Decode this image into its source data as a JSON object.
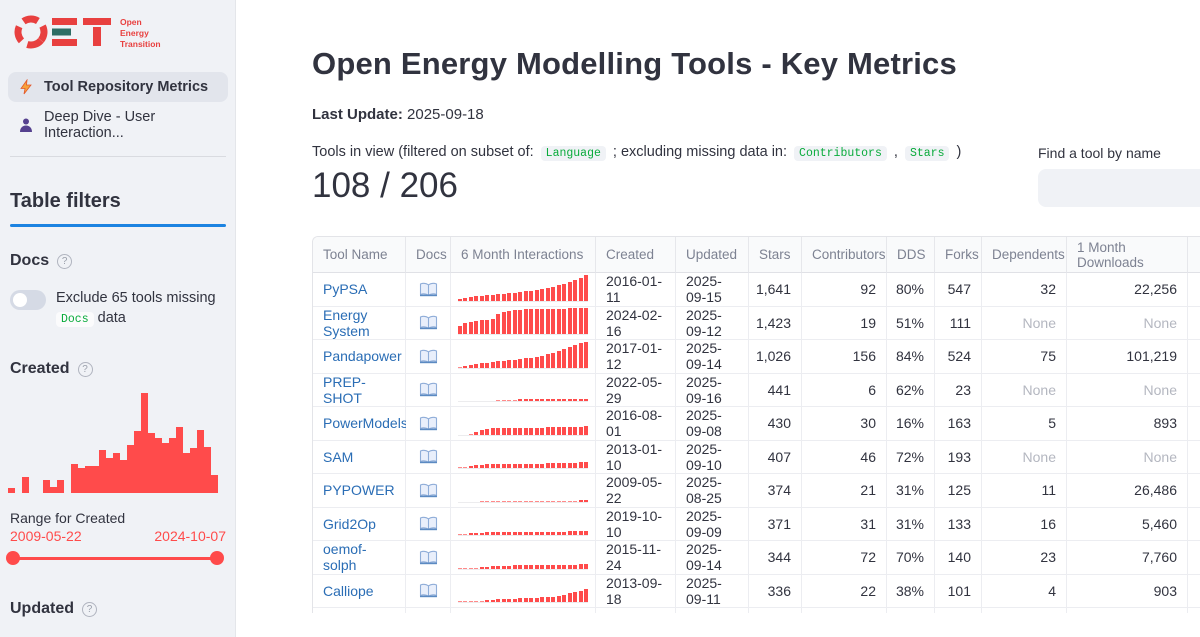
{
  "colors": {
    "accent_red": "#ff4b4b",
    "link_blue": "#2a6db5",
    "code_green": "#09ab3b",
    "divider_blue": "#1c83e1"
  },
  "sidebar": {
    "logo": {
      "text": "OET",
      "tagline_lines": [
        "Open",
        "Energy",
        "Transition"
      ]
    },
    "nav": [
      {
        "label": "Tool Repository Metrics",
        "icon": "bolt-icon",
        "active": true
      },
      {
        "label": "Deep Dive - User Interaction...",
        "icon": "person-icon",
        "active": false
      }
    ],
    "filters_title": "Table filters",
    "docs": {
      "title": "Docs",
      "toggle_on": false,
      "toggle_label_pre": "Exclude 65 tools missing",
      "toggle_code": "Docs",
      "toggle_label_post": "data"
    },
    "created": {
      "title": "Created",
      "histogram": [
        0.05,
        0,
        0.16,
        0,
        0,
        0.13,
        0.06,
        0.13,
        0,
        0.29,
        0.25,
        0.27,
        0.27,
        0.43,
        0.35,
        0.4,
        0.33,
        0.48,
        0.62,
        1.0,
        0.6,
        0.55,
        0.5,
        0.55,
        0.66,
        0.4,
        0.45,
        0.63,
        0.46,
        0.18
      ],
      "range_label": "Range for Created",
      "range_start": "2009-05-22",
      "range_end": "2024-10-07"
    },
    "updated": {
      "title": "Updated"
    }
  },
  "main": {
    "title": "Open Energy Modelling Tools - Key Metrics",
    "last_update_label": "Last Update:",
    "last_update_value": "2025-09-18",
    "tools_in_view": {
      "pre": "Tools in view (filtered on subset of:",
      "code1": "Language",
      "mid": "; excluding missing data in:",
      "code2": "Contributors",
      "sep": ",",
      "code3": "Stars",
      "post": ")"
    },
    "count": "108 / 206",
    "search": {
      "label": "Find a tool by name",
      "value": "",
      "placeholder": ""
    }
  },
  "table": {
    "columns": [
      "Tool Name",
      "Docs",
      "6 Month Interactions",
      "Created",
      "Updated",
      "Stars",
      "Contributors",
      "DDS",
      "Forks",
      "Dependents",
      "1 Month Downloads"
    ],
    "rows": [
      {
        "name": "PyPSA",
        "docs": true,
        "spark": [
          0.08,
          0.12,
          0.15,
          0.18,
          0.2,
          0.22,
          0.24,
          0.26,
          0.28,
          0.3,
          0.32,
          0.34,
          0.37,
          0.4,
          0.43,
          0.46,
          0.5,
          0.55,
          0.6,
          0.67,
          0.74,
          0.82,
          0.9,
          1.0
        ],
        "created": "2016-01-11",
        "updated": "2025-09-15",
        "stars": "1,641",
        "contributors": "92",
        "dds": "80%",
        "forks": "547",
        "dependents": "32",
        "downloads": "22,256"
      },
      {
        "name": "Energy System",
        "docs": true,
        "spark": [
          0.3,
          0.42,
          0.48,
          0.5,
          0.52,
          0.55,
          0.58,
          0.75,
          0.85,
          0.9,
          0.92,
          0.94,
          0.95,
          0.96,
          0.96,
          0.97,
          0.97,
          0.98,
          0.98,
          0.98,
          1.0,
          1.0,
          1.0,
          1.0
        ],
        "created": "2024-02-16",
        "updated": "2025-09-12",
        "stars": "1,423",
        "contributors": "19",
        "dds": "51%",
        "forks": "111",
        "dependents": "None",
        "downloads": "None"
      },
      {
        "name": "Pandapower",
        "docs": true,
        "spark": [
          0.05,
          0.08,
          0.12,
          0.15,
          0.18,
          0.2,
          0.22,
          0.25,
          0.27,
          0.3,
          0.32,
          0.35,
          0.38,
          0.4,
          0.44,
          0.48,
          0.52,
          0.58,
          0.65,
          0.72,
          0.8,
          0.88,
          0.95,
          1.0
        ],
        "created": "2017-01-12",
        "updated": "2025-09-14",
        "stars": "1,026",
        "contributors": "156",
        "dds": "84%",
        "forks": "524",
        "dependents": "75",
        "downloads": "101,219"
      },
      {
        "name": "PREP-SHOT",
        "docs": true,
        "spark": [
          0,
          0,
          0,
          0,
          0,
          0,
          0,
          0.04,
          0.05,
          0.05,
          0.05,
          0.06,
          0.06,
          0.06,
          0.06,
          0.07,
          0.07,
          0.07,
          0.07,
          0.08,
          0.08,
          0.08,
          0.08,
          0.09
        ],
        "created": "2022-05-29",
        "updated": "2025-09-16",
        "stars": "441",
        "contributors": "6",
        "dds": "62%",
        "forks": "23",
        "dependents": "None",
        "downloads": "None"
      },
      {
        "name": "PowerModels",
        "docs": true,
        "spark": [
          0,
          0,
          0.03,
          0.12,
          0.2,
          0.24,
          0.25,
          0.25,
          0.26,
          0.26,
          0.27,
          0.27,
          0.27,
          0.28,
          0.28,
          0.28,
          0.29,
          0.29,
          0.3,
          0.3,
          0.3,
          0.31,
          0.32,
          0.33
        ],
        "created": "2016-08-01",
        "updated": "2025-09-08",
        "stars": "430",
        "contributors": "30",
        "dds": "16%",
        "forks": "163",
        "dependents": "5",
        "downloads": "893"
      },
      {
        "name": "SAM",
        "docs": true,
        "spark": [
          0.03,
          0.04,
          0.06,
          0.1,
          0.13,
          0.15,
          0.15,
          0.15,
          0.16,
          0.16,
          0.16,
          0.16,
          0.17,
          0.17,
          0.17,
          0.17,
          0.18,
          0.18,
          0.18,
          0.19,
          0.19,
          0.2,
          0.22,
          0.24
        ],
        "created": "2013-01-10",
        "updated": "2025-09-10",
        "stars": "407",
        "contributors": "46",
        "dds": "72%",
        "forks": "193",
        "dependents": "None",
        "downloads": "None"
      },
      {
        "name": "PYPOWER",
        "docs": true,
        "spark": [
          0,
          0,
          0,
          0,
          0.02,
          0.02,
          0.02,
          0.03,
          0.03,
          0.03,
          0.03,
          0.03,
          0.04,
          0.04,
          0.04,
          0.04,
          0.04,
          0.05,
          0.05,
          0.05,
          0.05,
          0.05,
          0.06,
          0.06
        ],
        "created": "2009-05-22",
        "updated": "2025-08-25",
        "stars": "374",
        "contributors": "21",
        "dds": "31%",
        "forks": "125",
        "dependents": "11",
        "downloads": "26,486"
      },
      {
        "name": "Grid2Op",
        "docs": true,
        "spark": [
          0.03,
          0.04,
          0.06,
          0.08,
          0.09,
          0.1,
          0.1,
          0.11,
          0.11,
          0.11,
          0.12,
          0.12,
          0.12,
          0.12,
          0.12,
          0.13,
          0.13,
          0.13,
          0.13,
          0.13,
          0.14,
          0.14,
          0.15,
          0.15
        ],
        "created": "2019-10-10",
        "updated": "2025-09-09",
        "stars": "371",
        "contributors": "31",
        "dds": "31%",
        "forks": "133",
        "dependents": "16",
        "downloads": "5,460"
      },
      {
        "name": "oemof-solph",
        "docs": true,
        "spark": [
          0.02,
          0.03,
          0.04,
          0.05,
          0.07,
          0.08,
          0.1,
          0.11,
          0.12,
          0.13,
          0.14,
          0.14,
          0.15,
          0.15,
          0.15,
          0.16,
          0.16,
          0.16,
          0.16,
          0.17,
          0.17,
          0.17,
          0.18,
          0.18
        ],
        "created": "2015-11-24",
        "updated": "2025-09-14",
        "stars": "344",
        "contributors": "72",
        "dds": "70%",
        "forks": "140",
        "dependents": "23",
        "downloads": "7,760"
      },
      {
        "name": "Calliope",
        "docs": true,
        "spark": [
          0.02,
          0.02,
          0.03,
          0.04,
          0.05,
          0.07,
          0.08,
          0.1,
          0.11,
          0.12,
          0.13,
          0.14,
          0.15,
          0.16,
          0.17,
          0.18,
          0.19,
          0.21,
          0.24,
          0.28,
          0.33,
          0.38,
          0.44,
          0.5
        ],
        "created": "2013-09-18",
        "updated": "2025-09-11",
        "stars": "336",
        "contributors": "22",
        "dds": "38%",
        "forks": "101",
        "dependents": "4",
        "downloads": "903"
      }
    ]
  }
}
